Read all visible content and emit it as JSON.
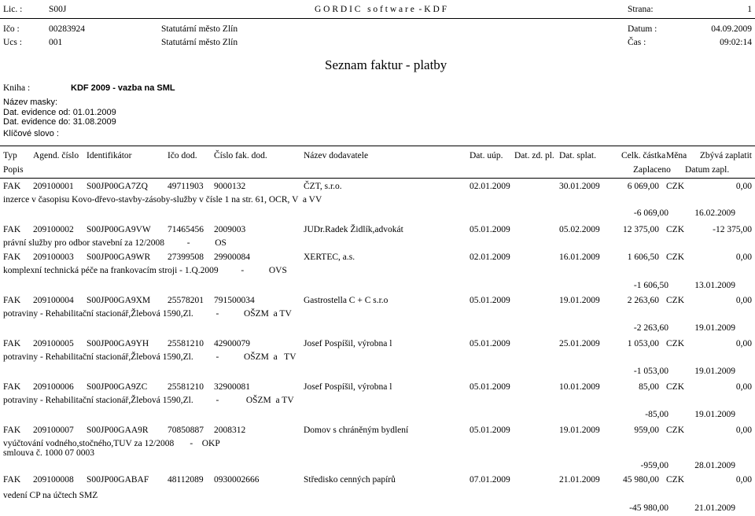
{
  "header": {
    "lic_label": "Lic. :",
    "lic_value": "S00J",
    "software": "G O R D I C   s o f t w a r e  - K D F",
    "page_label": "Strana:",
    "page_value": "1",
    "ico_label": "Ičo :",
    "ico_value": "00283924",
    "org1": "Statutární město Zlín",
    "date_label": "Datum :",
    "date_value": "04.09.2009",
    "ucs_label": "Ucs :",
    "ucs_value": "001",
    "org2": "Statutární město Zlín",
    "time_label": "Čas :",
    "time_value": "09:02:14"
  },
  "report_title": "Seznam faktur - platby",
  "filters": {
    "kniha_label": "Kniha :",
    "kniha_value": "KDF 2009 - vazba na SML",
    "maska_label": "Název masky:",
    "od_label": "Dat. evidence od:",
    "od_value": "01.01.2009",
    "do_label": "Dat. evidence do:",
    "do_value": "31.08.2009",
    "klic_label": "Klíčové slovo :"
  },
  "columns": {
    "typ": "Typ",
    "agend": "Agend. číslo",
    "ident": "Identifikátor",
    "ico": "Ičo dod.",
    "cislo": "Číslo fak. dod.",
    "nazev": "Název dodavatele",
    "uup": "Dat. uúp.",
    "zdpl": "Dat. zd. pl.",
    "splat": "Dat. splat.",
    "castka": "Celk. částka",
    "mena": "Měna",
    "zbyva": "Zbývá zaplatit",
    "popis": "Popis",
    "zaplaceno": "Zaplaceno",
    "datum_zapl": "Datum zapl."
  },
  "records": [
    {
      "typ": "FAK",
      "agend": "209100001",
      "ident": "S00JP00GA7ZQ",
      "ico": "49711903",
      "cislo": "9000132",
      "nazev": "ČZT, s.r.o.",
      "uup": "02.01.2009",
      "splat": "30.01.2009",
      "castka": "6 069,00",
      "mena": "CZK",
      "zbyva": "0,00",
      "popis": [
        "inzerce v časopisu Kovo-dřevo-stavby-zásoby-služby v čísle 1 na str. 61, OCR, V  a VV"
      ],
      "zaplaceno": "-6 069,00",
      "datum_zapl": "16.02.2009"
    },
    {
      "typ": "FAK",
      "agend": "209100002",
      "ident": "S00JP00GA9VW",
      "ico": "71465456",
      "cislo": "2009003",
      "nazev": "JUDr.Radek Židlík,advokát",
      "uup": "05.01.2009",
      "splat": "05.02.2009",
      "castka": "12 375,00",
      "mena": "CZK",
      "zbyva": "-12 375,00",
      "popis": [
        "právní služby pro odbor stavební za 12/2008          -           OS"
      ],
      "zaplaceno": "",
      "datum_zapl": ""
    },
    {
      "typ": "FAK",
      "agend": "209100003",
      "ident": "S00JP00GA9WR",
      "ico": "27399508",
      "cislo": "29900084",
      "nazev": "XERTEC, a.s.",
      "uup": "02.01.2009",
      "splat": "16.01.2009",
      "castka": "1 606,50",
      "mena": "CZK",
      "zbyva": "0,00",
      "popis": [
        "komplexní technická péče na frankovacím stroji - 1.Q.2009          -           OVS"
      ],
      "zaplaceno": "-1 606,50",
      "datum_zapl": "13.01.2009"
    },
    {
      "typ": "FAK",
      "agend": "209100004",
      "ident": "S00JP00GA9XM",
      "ico": "25578201",
      "cislo": "791500034",
      "nazev": "Gastrostella C + C s.r.o",
      "uup": "05.01.2009",
      "splat": "19.01.2009",
      "castka": "2 263,60",
      "mena": "CZK",
      "zbyva": "0,00",
      "popis": [
        "potraviny - Rehabilitační stacionář,Žlebová 1590,Zl.          -           OŠZM  a TV"
      ],
      "zaplaceno": "-2 263,60",
      "datum_zapl": "19.01.2009"
    },
    {
      "typ": "FAK",
      "agend": "209100005",
      "ident": "S00JP00GA9YH",
      "ico": "25581210",
      "cislo": "42900079",
      "nazev": "Josef Pospíšil, výrobna l",
      "uup": "05.01.2009",
      "splat": "25.01.2009",
      "castka": "1 053,00",
      "mena": "CZK",
      "zbyva": "0,00",
      "popis": [
        "potraviny - Rehabilitační stacionář,Žlebová 1590,Zl.          -           OŠZM  a   TV"
      ],
      "zaplaceno": "-1 053,00",
      "datum_zapl": "19.01.2009"
    },
    {
      "typ": "FAK",
      "agend": "209100006",
      "ident": "S00JP00GA9ZC",
      "ico": "25581210",
      "cislo": "32900081",
      "nazev": "Josef Pospíšil, výrobna l",
      "uup": "05.01.2009",
      "splat": "10.01.2009",
      "castka": "85,00",
      "mena": "CZK",
      "zbyva": "0,00",
      "popis": [
        "potraviny - Rehabilitační stacionář,Žlebová 1590,Zl.          -            OŠZM  a TV"
      ],
      "zaplaceno": "-85,00",
      "datum_zapl": "19.01.2009"
    },
    {
      "typ": "FAK",
      "agend": "209100007",
      "ident": "S00JP00GAA9R",
      "ico": "70850887",
      "cislo": "2008312",
      "nazev": "Domov s chráněným bydlení",
      "uup": "05.01.2009",
      "splat": "19.01.2009",
      "castka": "959,00",
      "mena": "CZK",
      "zbyva": "0,00",
      "popis": [
        "vyúčtování vodného,stočného,TUV za 12/2008       -    OKP",
        "smlouva č. 1000 07 0003"
      ],
      "zaplaceno": "-959,00",
      "datum_zapl": "28.01.2009"
    },
    {
      "typ": "FAK",
      "agend": "209100008",
      "ident": "S00JP00GABAF",
      "ico": "48112089",
      "cislo": "0930002666",
      "nazev": "Středisko cenných papírů",
      "uup": "07.01.2009",
      "splat": "21.01.2009",
      "castka": "45 980,00",
      "mena": "CZK",
      "zbyva": "0,00",
      "popis": [
        "vedení CP na účtech SMZ"
      ],
      "zaplaceno": "-45 980,00",
      "datum_zapl": "21.01.2009"
    }
  ]
}
